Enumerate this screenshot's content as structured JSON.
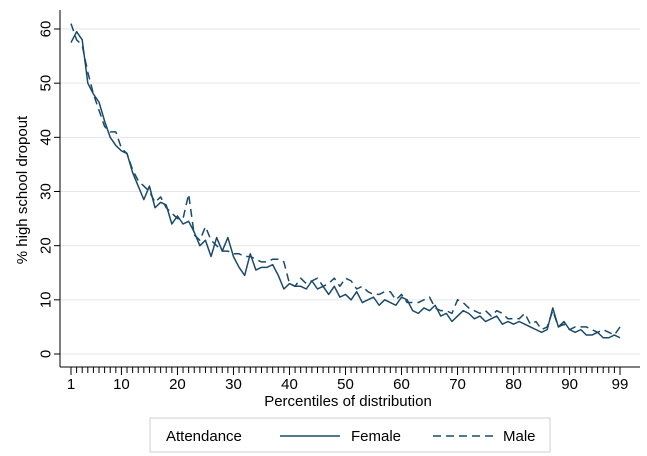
{
  "chart_data": {
    "type": "line",
    "xlabel": "Percentiles of distribution",
    "ylabel": "% high school dropout",
    "xlim": [
      1,
      99
    ],
    "ylim": [
      0,
      62
    ],
    "yticks": [
      0,
      10,
      20,
      30,
      40,
      50,
      60
    ],
    "xticks": [
      1,
      10,
      20,
      30,
      40,
      50,
      60,
      70,
      80,
      90,
      99
    ],
    "grid": true,
    "legend": {
      "title": "Attendance",
      "position": "bottom"
    },
    "colors": {
      "line": "#1a4a6b",
      "grid": "#e6e6e6",
      "axis": "#000000"
    },
    "series": [
      {
        "name": "Female",
        "style": "solid",
        "x": [
          1,
          2,
          3,
          4,
          5,
          6,
          7,
          8,
          9,
          10,
          11,
          12,
          13,
          14,
          15,
          16,
          17,
          18,
          19,
          20,
          21,
          22,
          23,
          24,
          25,
          26,
          27,
          28,
          29,
          30,
          31,
          32,
          33,
          34,
          35,
          36,
          37,
          38,
          39,
          40,
          41,
          42,
          43,
          44,
          45,
          46,
          47,
          48,
          49,
          50,
          51,
          52,
          53,
          54,
          55,
          56,
          57,
          58,
          59,
          60,
          61,
          62,
          63,
          64,
          65,
          66,
          67,
          68,
          69,
          70,
          71,
          72,
          73,
          74,
          75,
          76,
          77,
          78,
          79,
          80,
          81,
          82,
          83,
          84,
          85,
          86,
          87,
          88,
          89,
          90,
          91,
          92,
          93,
          94,
          95,
          96,
          97,
          98,
          99
        ],
        "values": [
          57.5,
          59.5,
          58,
          50,
          48,
          46.5,
          43,
          40,
          38.5,
          37.5,
          37,
          33.5,
          31,
          28.5,
          31,
          27,
          28,
          27.5,
          24,
          25.5,
          24,
          24.5,
          22.5,
          20,
          21,
          18,
          21.5,
          19,
          21.5,
          18,
          16,
          14.5,
          18.5,
          15.5,
          16,
          16,
          16.5,
          14.5,
          12,
          13,
          12.5,
          12.5,
          12,
          13.5,
          12,
          12.5,
          11,
          12.5,
          10.5,
          11,
          10,
          11.5,
          9.5,
          10,
          10.5,
          9,
          10,
          9.5,
          9,
          10.5,
          10,
          8,
          7.5,
          8.5,
          8,
          9,
          7,
          7.5,
          6,
          7,
          8,
          7.5,
          6.5,
          7,
          6,
          6.5,
          7,
          5.5,
          6,
          5.5,
          6,
          5.5,
          5,
          4.5,
          4,
          4.5,
          8.5,
          5,
          6,
          4.5,
          4,
          4.5,
          3.5,
          3.5,
          4,
          3,
          3,
          3.5,
          3
        ]
      },
      {
        "name": "Male",
        "style": "dashed",
        "x": [
          1,
          2,
          3,
          4,
          5,
          6,
          7,
          8,
          9,
          10,
          11,
          12,
          13,
          14,
          15,
          16,
          17,
          18,
          19,
          20,
          21,
          22,
          23,
          24,
          25,
          26,
          27,
          28,
          29,
          30,
          31,
          32,
          33,
          34,
          35,
          36,
          37,
          38,
          39,
          40,
          41,
          42,
          43,
          44,
          45,
          46,
          47,
          48,
          49,
          50,
          51,
          52,
          53,
          54,
          55,
          56,
          57,
          58,
          59,
          60,
          61,
          62,
          63,
          64,
          65,
          66,
          67,
          68,
          69,
          70,
          71,
          72,
          73,
          74,
          75,
          76,
          77,
          78,
          79,
          80,
          81,
          82,
          83,
          84,
          85,
          86,
          87,
          88,
          89,
          90,
          91,
          92,
          93,
          94,
          95,
          96,
          97,
          98,
          99
        ],
        "values": [
          61,
          58,
          57,
          52,
          48,
          45,
          42,
          41,
          41,
          38,
          37,
          34,
          32,
          31,
          30,
          28,
          29,
          27,
          26,
          25,
          25,
          29.5,
          22,
          21,
          23.5,
          21,
          20,
          19,
          19,
          18.5,
          18.5,
          18,
          18,
          17.5,
          17,
          17,
          17.5,
          17.5,
          17,
          13,
          12.5,
          14,
          13,
          13.5,
          14,
          12.5,
          13,
          14,
          12.5,
          14,
          13.5,
          12,
          12.5,
          11.5,
          11,
          11,
          11.5,
          11.5,
          10,
          11,
          9.5,
          9.5,
          9.5,
          10,
          10.5,
          8.5,
          8,
          8,
          7.5,
          10,
          9.5,
          8.5,
          8,
          7.5,
          8,
          7,
          8,
          7.5,
          6.5,
          6.5,
          6.5,
          7.5,
          5.5,
          6,
          4.5,
          5,
          8,
          5,
          5.5,
          4.5,
          5,
          5,
          5,
          4.5,
          4,
          4.5,
          4,
          3.5,
          5
        ]
      }
    ]
  }
}
